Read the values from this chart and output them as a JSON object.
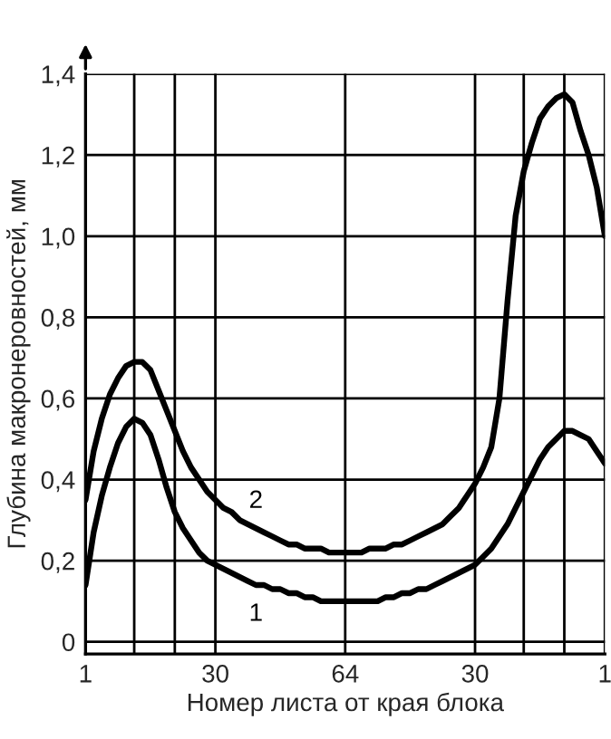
{
  "chart_data": {
    "type": "line",
    "xlabel": "Номер листа от края блока",
    "ylabel": "Глубина макронеровностей, мм",
    "categories": [
      "1",
      null,
      null,
      null,
      null,
      null,
      null,
      null,
      null,
      null,
      null,
      null,
      null,
      null,
      null,
      null,
      "30",
      null,
      null,
      null,
      null,
      null,
      null,
      null,
      null,
      null,
      null,
      null,
      null,
      null,
      null,
      null,
      "64",
      null,
      null,
      null,
      null,
      null,
      null,
      null,
      null,
      null,
      null,
      null,
      null,
      null,
      null,
      null,
      "30",
      null,
      null,
      null,
      null,
      null,
      null,
      null,
      null,
      null,
      null,
      null,
      null,
      null,
      null,
      null,
      "1"
    ],
    "ylim": [
      -0.03,
      1.4
    ],
    "yticks": [
      0,
      {
        "value": 0.2,
        "label": "0,2"
      },
      {
        "value": 0.4,
        "label": "0,4"
      },
      {
        "value": 0.6,
        "label": "0,6"
      },
      {
        "value": 0.8,
        "label": "0,8"
      },
      {
        "value": 1.0,
        "label": "1,0"
      },
      {
        "value": 1.2,
        "label": "1,2"
      },
      {
        "value": 1.4,
        "label": "1,4"
      }
    ],
    "grid": true,
    "line_style": "solid",
    "series": [
      {
        "name": "1",
        "color": "#000000",
        "values": [
          0.14,
          0.27,
          0.36,
          0.43,
          0.49,
          0.53,
          0.55,
          0.54,
          0.51,
          0.45,
          0.38,
          0.32,
          0.28,
          0.25,
          0.22,
          0.2,
          0.19,
          0.18,
          0.17,
          0.16,
          0.15,
          0.14,
          0.14,
          0.13,
          0.13,
          0.12,
          0.12,
          0.11,
          0.11,
          0.1,
          0.1,
          0.1,
          0.1,
          0.1,
          0.1,
          0.1,
          0.1,
          0.11,
          0.11,
          0.12,
          0.12,
          0.13,
          0.13,
          0.14,
          0.15,
          0.16,
          0.17,
          0.18,
          0.19,
          0.21,
          0.23,
          0.26,
          0.29,
          0.33,
          0.37,
          0.41,
          0.45,
          0.48,
          0.5,
          0.52,
          0.52,
          0.51,
          0.5,
          0.47,
          0.44
        ]
      },
      {
        "name": "2",
        "color": "#000000",
        "values": [
          0.35,
          0.47,
          0.55,
          0.61,
          0.65,
          0.68,
          0.69,
          0.69,
          0.67,
          0.62,
          0.57,
          0.52,
          0.47,
          0.43,
          0.4,
          0.37,
          0.35,
          0.33,
          0.32,
          0.3,
          0.29,
          0.28,
          0.27,
          0.26,
          0.25,
          0.24,
          0.24,
          0.23,
          0.23,
          0.23,
          0.22,
          0.22,
          0.22,
          0.22,
          0.22,
          0.23,
          0.23,
          0.23,
          0.24,
          0.24,
          0.25,
          0.26,
          0.27,
          0.28,
          0.29,
          0.31,
          0.33,
          0.36,
          0.39,
          0.43,
          0.48,
          0.6,
          0.84,
          1.05,
          1.16,
          1.23,
          1.29,
          1.32,
          1.34,
          1.35,
          1.33,
          1.26,
          1.2,
          1.12,
          1.0
        ]
      }
    ]
  }
}
